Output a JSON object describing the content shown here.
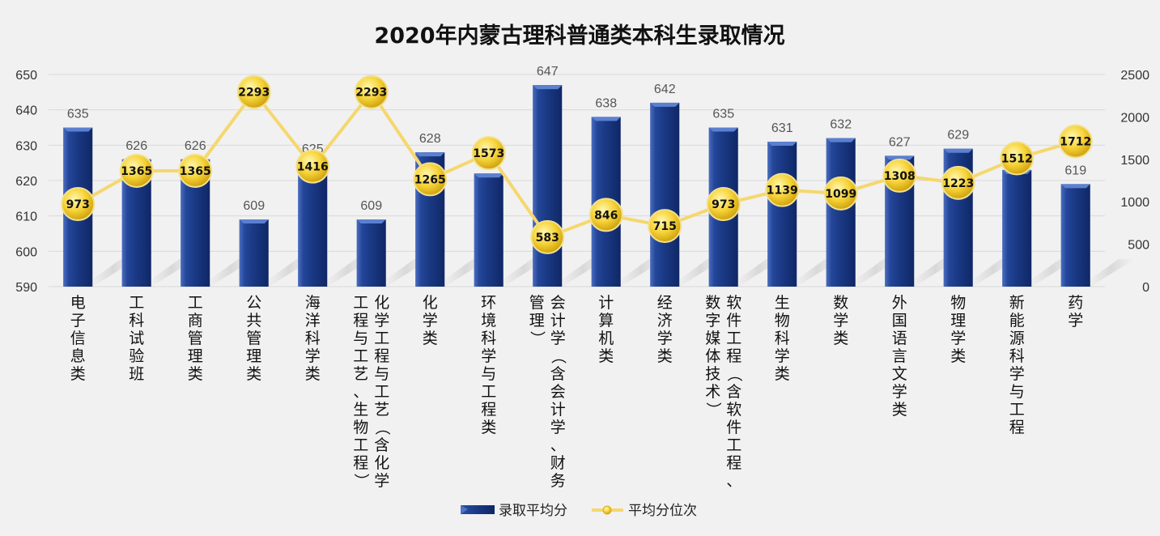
{
  "chart_data": {
    "type": "bar",
    "title": "2020年内蒙古理科普通类本科生录取情况",
    "categories": [
      "电子信息类",
      "工科试验班",
      "工商管理类",
      "公共管理类",
      "海洋科学类",
      "化学工程与工艺（含化学工程与工艺、生物工程）",
      "化学类",
      "环境科学与工程类",
      "会计学（含会计学、财务管理）",
      "计算机类",
      "经济学类",
      "软件工程（含软件工程、数字媒体技术）",
      "生物科学类",
      "数学类",
      "外国语言文学类",
      "物理学类",
      "新能源科学与工程",
      "药学"
    ],
    "category_lines": [
      [
        "电子信息类"
      ],
      [
        "工科试验班"
      ],
      [
        "工商管理类"
      ],
      [
        "公共管理类"
      ],
      [
        "海洋科学类"
      ],
      [
        "化学工程与工艺（含化学",
        "工程与工艺、生物工程）"
      ],
      [
        "化学类"
      ],
      [
        "环境科学与工程类"
      ],
      [
        "会计学（含会计学、财务",
        "管理）"
      ],
      [
        "计算机类"
      ],
      [
        "经济学类"
      ],
      [
        "软件工程（含软件工程、",
        "数字媒体技术）"
      ],
      [
        "生物科学类"
      ],
      [
        "数学类"
      ],
      [
        "外国语言文学类"
      ],
      [
        "物理学类"
      ],
      [
        "新能源科学与工程"
      ],
      [
        "药学"
      ]
    ],
    "series": [
      {
        "name": "录取平均分",
        "type": "bar",
        "axis": "left",
        "color": "#1f3f8f",
        "values": [
          635,
          626,
          626,
          609,
          625,
          609,
          628,
          622,
          647,
          638,
          642,
          635,
          631,
          632,
          627,
          629,
          623,
          619
        ]
      },
      {
        "name": "平均分位次",
        "type": "line",
        "axis": "right",
        "color": "#f5d76e",
        "values": [
          973,
          1365,
          1365,
          2293,
          1416,
          2293,
          1265,
          1573,
          583,
          846,
          715,
          973,
          1139,
          1099,
          1308,
          1223,
          1512,
          1712
        ]
      }
    ],
    "y_left": {
      "min": 590,
      "max": 650,
      "ticks": [
        590,
        600,
        610,
        620,
        630,
        640,
        650
      ]
    },
    "y_right": {
      "min": 0,
      "max": 2500,
      "ticks": [
        0,
        500,
        1000,
        1500,
        2000,
        2500
      ]
    },
    "grid": true,
    "legend": "bottom"
  }
}
